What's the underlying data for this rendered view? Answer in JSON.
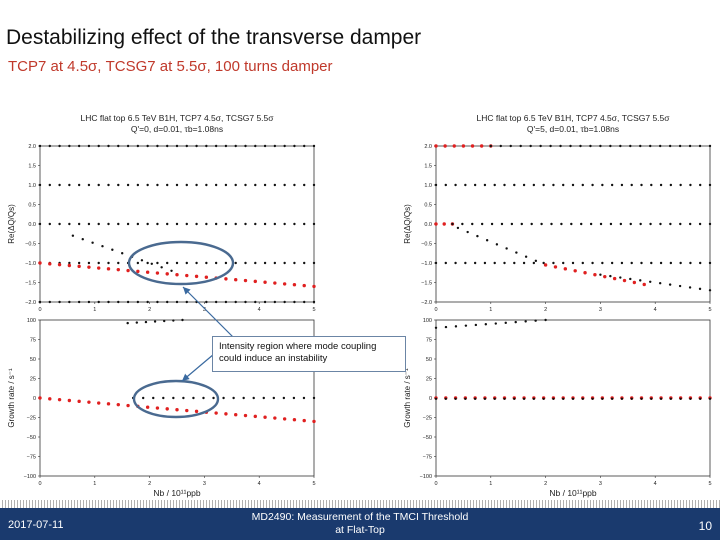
{
  "slide": {
    "title": "Destabilizing effect of the transverse damper",
    "subtitle": "TCP7 at 4.5σ, TCSG7 at 5.5σ, 100 turns damper",
    "callout": "Intensity region where mode coupling could induce an instability"
  },
  "footer": {
    "date": "2017-07-11",
    "center": "MD2490: Measurement of the TMCI Threshold at Flat-Top",
    "page": "10"
  },
  "colors": {
    "footer_bg": "#1a3a6e",
    "subtitle": "#c0392b",
    "unstable_mode": "#e02020",
    "stable_mode": "#111111",
    "callout_ellipse": "#4a6a90"
  },
  "chart_data": [
    {
      "type": "scatter",
      "panel": "left",
      "title": "LHC flat top 6.5 TeV B1H, TCP7 4.5σ, TCSG7 5.5σ\nQ'=0, d=0.01, τb=1.08ns",
      "top": {
        "ylabel": "Re(ΔQ/Qs)",
        "ylim": [
          -2.0,
          2.0
        ],
        "yticks": [
          "2.0",
          "1.5",
          "1.0",
          "0.5",
          "0.0",
          "−0.5",
          "−1.0",
          "−1.5",
          "−2.0"
        ],
        "xlim": [
          0,
          5
        ],
        "xticks": [
          "0",
          "1",
          "2",
          "3",
          "4",
          "5"
        ],
        "series": [
          {
            "type": "flat",
            "y": 2.0,
            "color": "black",
            "x_from": 0.0,
            "x_to": 5.0
          },
          {
            "type": "flat",
            "y": 1.0,
            "color": "black",
            "x_from": 0.0,
            "x_to": 5.0
          },
          {
            "type": "flat",
            "y": 0.0,
            "color": "black",
            "x_from": 0.0,
            "x_to": 5.0
          },
          {
            "type": "flat",
            "y": -1.0,
            "color": "black",
            "x_from": 0.0,
            "x_to": 5.0
          },
          {
            "type": "flat",
            "y": -2.0,
            "color": "black",
            "x_from": 0.0,
            "x_to": 5.0
          },
          {
            "type": "linear",
            "y0": -0.3,
            "y1": -1.2,
            "x_from": 0.6,
            "x_to": 2.4,
            "color": "black"
          },
          {
            "type": "linear",
            "y0": -1.0,
            "y1": -1.6,
            "x_from": 0.0,
            "x_to": 5.0,
            "color": "red"
          }
        ]
      },
      "bottom": {
        "ylabel": "Growth rate / s⁻¹",
        "xlabel": "Nb / 10¹¹ppb",
        "ylim": [
          -100,
          100
        ],
        "yticks": [
          "100",
          "75",
          "50",
          "25",
          "0",
          "−25",
          "−50",
          "−75",
          "−100"
        ],
        "xlim": [
          0,
          5
        ],
        "xticks": [
          "0",
          "1",
          "2",
          "3",
          "4",
          "5"
        ],
        "series": [
          {
            "type": "flat",
            "y": 0.0,
            "color": "black",
            "x_from": 1.7,
            "x_to": 5.0
          },
          {
            "type": "linear",
            "y0": 0.0,
            "y1": -30.0,
            "x_from": 0.0,
            "x_to": 5.0,
            "color": "red"
          },
          {
            "type": "linear",
            "y0": 96.0,
            "y1": 100.0,
            "x_from": 1.6,
            "x_to": 2.6,
            "color": "black"
          }
        ]
      }
    },
    {
      "type": "scatter",
      "panel": "right",
      "title": "LHC flat top 6.5 TeV B1H, TCP7 4.5σ, TCSG7 5.5σ\nQ'=5, d=0.01, τb=1.08ns",
      "top": {
        "ylabel": "Re(ΔQ/Qs)",
        "ylim": [
          -2.0,
          2.0
        ],
        "yticks": [
          "2.0",
          "1.5",
          "1.0",
          "0.5",
          "0.0",
          "−0.5",
          "−1.0",
          "−1.5",
          "−2.0"
        ],
        "xlim": [
          0,
          5
        ],
        "xticks": [
          "0",
          "1",
          "2",
          "3",
          "4",
          "5"
        ],
        "series": [
          {
            "type": "flat",
            "y": 2.0,
            "color": "red",
            "x_from": 0.0,
            "x_to": 1.0
          },
          {
            "type": "flat",
            "y": 2.0,
            "color": "black",
            "x_from": 1.0,
            "x_to": 5.0
          },
          {
            "type": "flat",
            "y": 1.0,
            "color": "black",
            "x_from": 0.0,
            "x_to": 5.0
          },
          {
            "type": "flat",
            "y": 0.0,
            "color": "red",
            "x_from": 0.0,
            "x_to": 0.3
          },
          {
            "type": "flat",
            "y": 0.0,
            "color": "black",
            "x_from": 0.3,
            "x_to": 5.0
          },
          {
            "type": "flat",
            "y": -1.0,
            "color": "black",
            "x_from": 0.0,
            "x_to": 5.0
          },
          {
            "type": "linear",
            "y0": -0.1,
            "y1": -1.05,
            "x_from": 0.4,
            "x_to": 2.0,
            "color": "black"
          },
          {
            "type": "linear",
            "y0": -1.05,
            "y1": -1.55,
            "x_from": 2.0,
            "x_to": 3.8,
            "color": "red"
          },
          {
            "type": "linear",
            "y0": -1.3,
            "y1": -1.7,
            "x_from": 3.0,
            "x_to": 5.0,
            "color": "black"
          }
        ]
      },
      "bottom": {
        "ylabel": "Growth rate / s⁻¹",
        "xlabel": "Nb / 10¹¹ppb",
        "ylim": [
          -100,
          100
        ],
        "yticks": [
          "100",
          "75",
          "50",
          "25",
          "0",
          "−25",
          "−50",
          "−75",
          "−100"
        ],
        "xlim": [
          0,
          5
        ],
        "xticks": [
          "0",
          "1",
          "2",
          "3",
          "4",
          "5"
        ],
        "series": [
          {
            "type": "flat",
            "y": 0.0,
            "color": "red",
            "x_from": 0.0,
            "x_to": 5.0
          },
          {
            "type": "flat",
            "y": -1.0,
            "color": "black",
            "x_from": 0.0,
            "x_to": 5.0
          },
          {
            "type": "linear",
            "y0": 90.0,
            "y1": 100.0,
            "x_from": 0.0,
            "x_to": 2.0,
            "color": "black"
          }
        ]
      }
    }
  ]
}
